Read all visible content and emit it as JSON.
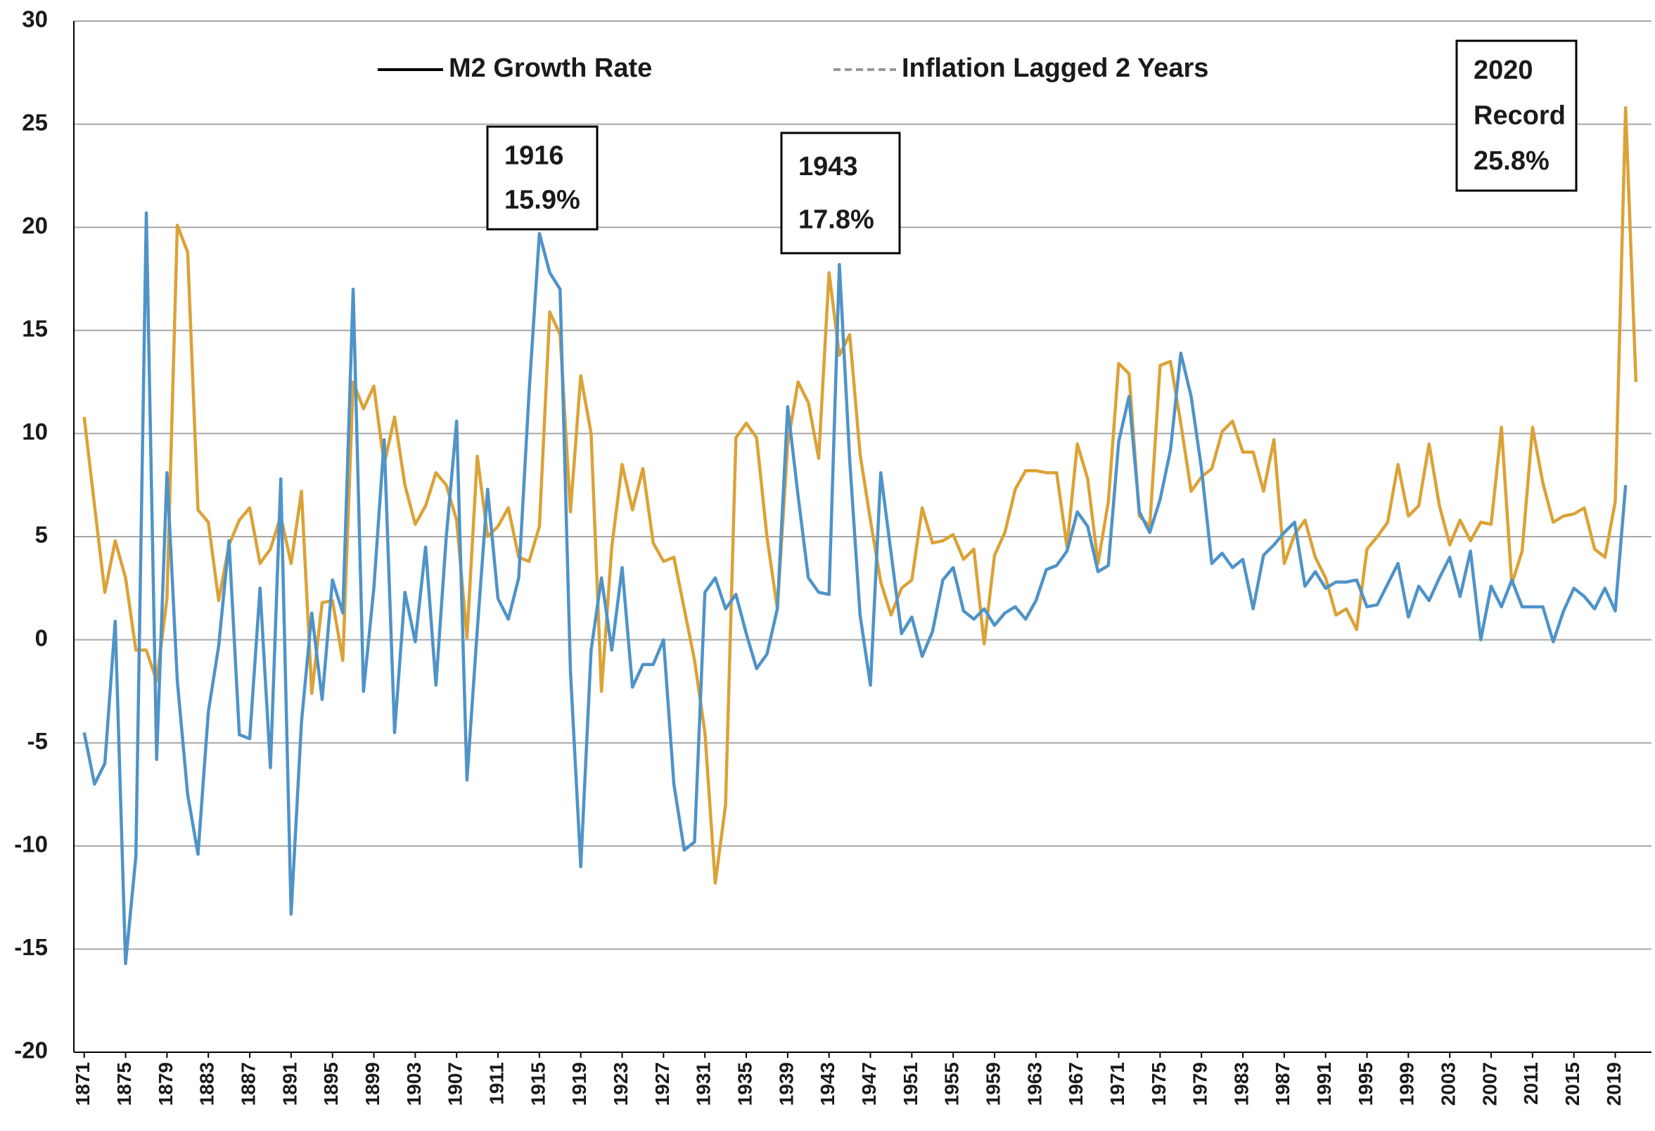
{
  "chart_data": {
    "type": "line",
    "legend": [
      {
        "name": "M2 Growth Rate",
        "color": "#000000",
        "dash": false
      },
      {
        "name": "Inflation Lagged 2 Years",
        "color": "#999999",
        "dash": true
      }
    ],
    "annotations": [
      {
        "lines": [
          "1916",
          "15.9%"
        ]
      },
      {
        "lines": [
          "1943",
          "17.8%"
        ]
      },
      {
        "lines": [
          "2020",
          "Record",
          "25.8%"
        ]
      }
    ],
    "x": [
      1871,
      1872,
      1873,
      1874,
      1875,
      1876,
      1877,
      1878,
      1879,
      1880,
      1881,
      1882,
      1883,
      1884,
      1885,
      1886,
      1887,
      1888,
      1889,
      1890,
      1891,
      1892,
      1893,
      1894,
      1895,
      1896,
      1897,
      1898,
      1899,
      1900,
      1901,
      1902,
      1903,
      1904,
      1905,
      1906,
      1907,
      1908,
      1909,
      1910,
      1911,
      1912,
      1913,
      1914,
      1915,
      1916,
      1917,
      1918,
      1919,
      1920,
      1921,
      1922,
      1923,
      1924,
      1925,
      1926,
      1927,
      1928,
      1929,
      1930,
      1931,
      1932,
      1933,
      1934,
      1935,
      1936,
      1937,
      1938,
      1939,
      1940,
      1941,
      1942,
      1943,
      1944,
      1945,
      1946,
      1947,
      1948,
      1949,
      1950,
      1951,
      1952,
      1953,
      1954,
      1955,
      1956,
      1957,
      1958,
      1959,
      1960,
      1961,
      1962,
      1963,
      1964,
      1965,
      1966,
      1967,
      1968,
      1969,
      1970,
      1971,
      1972,
      1973,
      1974,
      1975,
      1976,
      1977,
      1978,
      1979,
      1980,
      1981,
      1982,
      1983,
      1984,
      1985,
      1986,
      1987,
      1988,
      1989,
      1990,
      1991,
      1992,
      1993,
      1994,
      1995,
      1996,
      1997,
      1998,
      1999,
      2000,
      2001,
      2002,
      2003,
      2004,
      2005,
      2006,
      2007,
      2008,
      2009,
      2010,
      2011,
      2012,
      2013,
      2014,
      2015,
      2016,
      2017,
      2018,
      2019,
      2020,
      2021
    ],
    "series": [
      {
        "color": "#dba237",
        "values": [
          10.8,
          6.5,
          2.3,
          4.8,
          3.0,
          -0.5,
          -0.5,
          -2.0,
          2.0,
          20.1,
          18.8,
          6.3,
          5.7,
          1.9,
          4.6,
          5.8,
          6.4,
          3.7,
          4.4,
          6.0,
          3.7,
          7.2,
          -2.6,
          1.8,
          1.9,
          -1.0,
          12.5,
          11.2,
          12.3,
          8.5,
          10.8,
          7.5,
          5.6,
          6.5,
          8.1,
          7.5,
          5.8,
          0.1,
          8.9,
          5.0,
          5.5,
          6.4,
          4.0,
          3.8,
          5.5,
          15.9,
          14.8,
          6.2,
          12.8,
          10.0,
          -2.5,
          4.5,
          8.5,
          6.3,
          8.3,
          4.7,
          3.8,
          4.0,
          1.5,
          -1.0,
          -4.5,
          -11.8,
          -8.0,
          9.8,
          10.5,
          9.8,
          5.0,
          1.5,
          9.5,
          12.5,
          11.5,
          8.8,
          17.8,
          13.8,
          14.8,
          9.0,
          5.8,
          2.8,
          1.2,
          2.5,
          2.9,
          6.4,
          4.7,
          4.8,
          5.1,
          3.9,
          4.4,
          -0.2,
          4.1,
          5.2,
          7.3,
          8.2,
          8.2,
          8.1,
          8.1,
          4.5,
          9.5,
          7.8,
          3.7,
          6.7,
          13.4,
          12.9,
          6.0,
          5.5,
          13.3,
          13.5,
          10.5,
          7.2,
          7.9,
          8.3,
          10.1,
          10.6,
          9.1,
          9.1,
          7.2,
          9.7,
          3.7,
          5.1,
          5.8,
          4.0,
          3.0,
          1.2,
          1.5,
          0.5,
          4.4,
          5.0,
          5.7,
          8.5,
          6.0,
          6.5,
          9.5,
          6.5,
          4.6,
          5.8,
          4.8,
          5.7,
          5.6,
          10.3,
          2.7,
          4.3,
          10.3,
          7.6,
          5.7,
          6.0,
          6.1,
          6.4,
          4.4,
          4.0,
          6.7,
          25.8,
          12.5
        ]
      },
      {
        "color": "#4f93c8",
        "values": [
          -4.5,
          -7.0,
          -6.0,
          0.9,
          -15.7,
          -10.5,
          20.7,
          -5.8,
          8.1,
          -2.0,
          -7.5,
          -10.4,
          -3.5,
          -0.3,
          4.8,
          -4.6,
          -4.8,
          2.5,
          -6.2,
          7.8,
          -13.3,
          -4.0,
          1.3,
          -2.9,
          2.9,
          1.3,
          17.0,
          -2.5,
          2.5,
          9.7,
          -4.5,
          2.3,
          -0.1,
          4.5,
          -2.2,
          5.0,
          10.6,
          -6.8,
          0.5,
          7.3,
          2.0,
          1.0,
          3.0,
          12.0,
          19.7,
          17.8,
          17.0,
          -1.5,
          -11.0,
          -0.5,
          3.0,
          -0.5,
          3.5,
          -2.3,
          -1.2,
          -1.2,
          0.0,
          -7.0,
          -10.2,
          -9.8,
          2.3,
          3.0,
          1.5,
          2.2,
          0.3,
          -1.4,
          -0.7,
          1.5,
          11.3,
          7.0,
          3.0,
          2.3,
          2.2,
          18.2,
          8.7,
          1.2,
          -2.2,
          8.1,
          4.2,
          0.3,
          1.1,
          -0.8,
          0.4,
          2.9,
          3.5,
          1.4,
          1.0,
          1.5,
          0.7,
          1.3,
          1.6,
          1.0,
          1.9,
          3.4,
          3.6,
          4.3,
          6.2,
          5.5,
          3.3,
          3.6,
          9.6,
          11.8,
          6.2,
          5.2,
          6.8,
          9.2,
          13.9,
          11.8,
          8.3,
          3.7,
          4.2,
          3.5,
          3.9,
          1.5,
          4.1,
          4.6,
          5.2,
          5.7,
          2.6,
          3.3,
          2.5,
          2.8,
          2.8,
          2.9,
          1.6,
          1.7,
          2.7,
          3.7,
          1.1,
          2.6,
          1.9,
          3.0,
          4.0,
          2.1,
          4.3,
          0.0,
          2.6,
          1.6,
          2.9,
          1.6,
          1.6,
          1.6,
          -0.1,
          1.4,
          2.5,
          2.1,
          1.5,
          2.5,
          1.4,
          7.5,
          null
        ]
      }
    ],
    "xlim": [
      1870,
      2022.5
    ],
    "xticks": [
      1871,
      1875,
      1879,
      1883,
      1887,
      1891,
      1895,
      1899,
      1903,
      1907,
      1911,
      1915,
      1919,
      1923,
      1927,
      1931,
      1935,
      1939,
      1943,
      1947,
      1951,
      1955,
      1959,
      1963,
      1967,
      1971,
      1975,
      1979,
      1983,
      1987,
      1991,
      1995,
      1999,
      2003,
      2007,
      2011,
      2015,
      2019
    ],
    "ylim": [
      -20,
      30
    ],
    "yticks": [
      -20,
      -15,
      -10,
      -5,
      0,
      5,
      10,
      15,
      20,
      25,
      30
    ],
    "grid": true
  }
}
